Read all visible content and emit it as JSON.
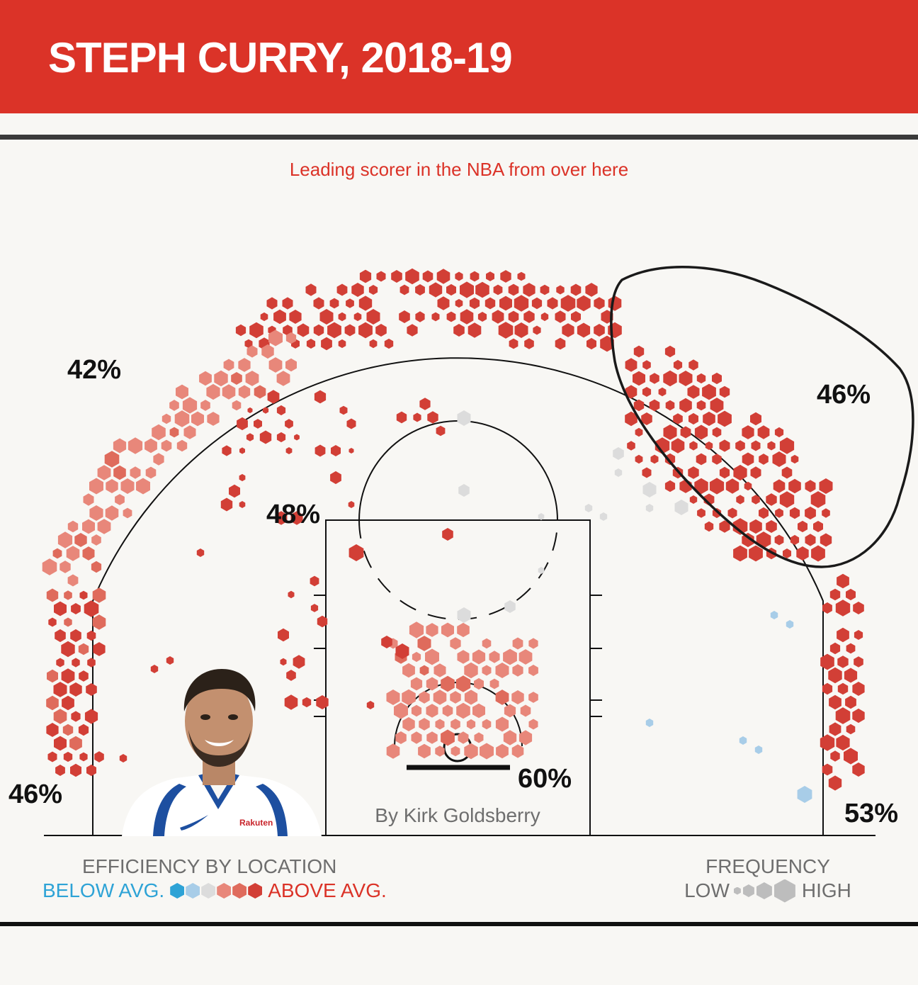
{
  "header": {
    "title": "STEPH CURRY, 2018-19"
  },
  "subtitle": "Leading scorer in the NBA from over here",
  "byline": "By Kirk Goldsberry",
  "colors": {
    "header_red": "#db3328",
    "below_dark": "#2ea3d6",
    "below_light": "#a8cde8",
    "average": "#dcdcdc",
    "above_light": "#e8877a",
    "above_mid": "#df6b5c",
    "above_dark": "#d23f36"
  },
  "legend": {
    "efficiency_title": "EFFICIENCY BY LOCATION",
    "below_label": "BELOW AVG.",
    "above_label": "ABOVE AVG.",
    "frequency_title": "FREQUENCY",
    "low_label": "LOW",
    "high_label": "HIGH"
  },
  "chart_data": {
    "type": "hexbin",
    "zones": [
      {
        "zone": "Left above-the-break three",
        "fg_pct": "42%"
      },
      {
        "zone": "Right above-the-break three",
        "fg_pct": "46%"
      },
      {
        "zone": "Left mid-range",
        "fg_pct": "48%"
      },
      {
        "zone": "Restricted area",
        "fg_pct": "60%"
      },
      {
        "zone": "Left corner three",
        "fg_pct": "46%"
      },
      {
        "zone": "Right corner three",
        "fg_pct": "53%"
      }
    ],
    "annotation": "Right wing three region circled",
    "efficiency_scale": [
      "below_dark",
      "below_light",
      "average",
      "above_light",
      "above_mid",
      "above_dark"
    ],
    "frequency_scale": [
      "low",
      "medium",
      "high"
    ]
  },
  "photo": {
    "jersey_text": "Rakuten"
  }
}
